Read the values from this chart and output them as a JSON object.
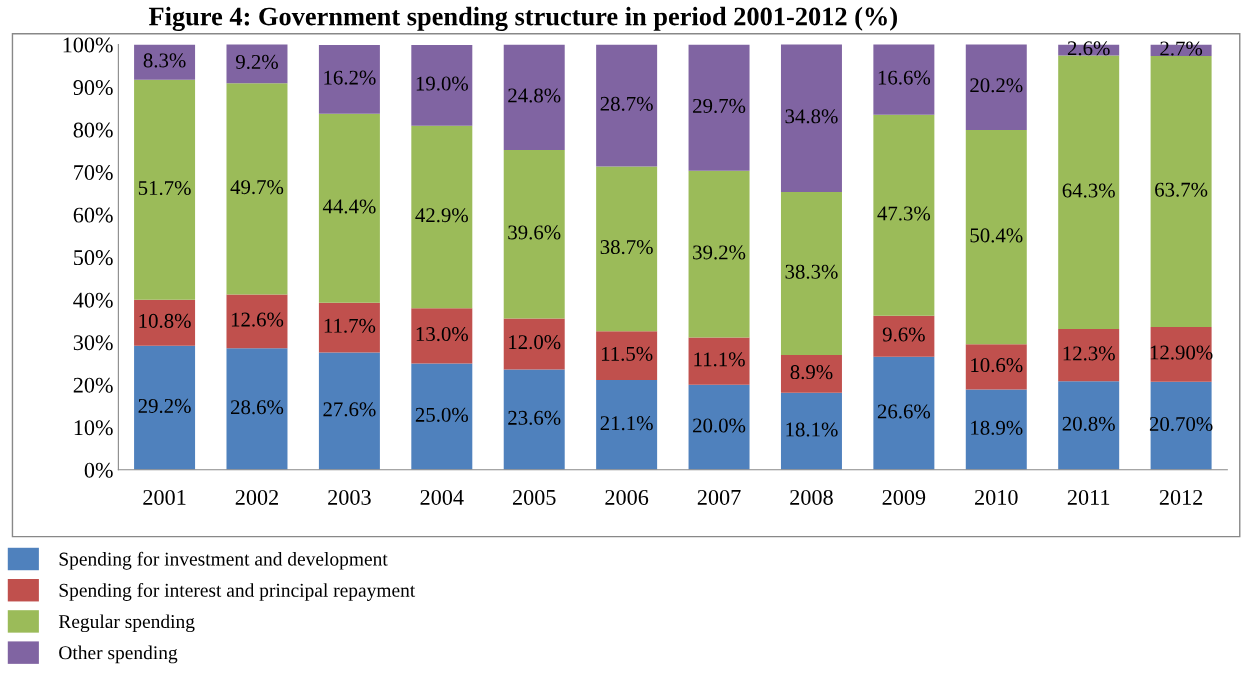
{
  "chart_data": {
    "type": "bar",
    "stacked": true,
    "title": "Figure 4: Government spending structure in period 2001-2012 (%)",
    "categories": [
      "2001",
      "2002",
      "2003",
      "2004",
      "2005",
      "2006",
      "2007",
      "2008",
      "2009",
      "2010",
      "2011",
      "2012"
    ],
    "series": [
      {
        "name": "Spending for investment and development",
        "color": "#4f81bd",
        "values": [
          29.2,
          28.6,
          27.6,
          25.0,
          23.6,
          21.1,
          20.0,
          18.1,
          26.6,
          18.9,
          20.8,
          20.7
        ],
        "value_labels": [
          "29.2%",
          "28.6%",
          "27.6%",
          "25.0%",
          "23.6%",
          "21.1%",
          "20.0%",
          "18.1%",
          "26.6%",
          "18.9%",
          "20.8%",
          "20.70%"
        ]
      },
      {
        "name": "Spending for interest and principal repayment",
        "color": "#c0504d",
        "values": [
          10.8,
          12.6,
          11.7,
          13.0,
          12.0,
          11.5,
          11.1,
          8.9,
          9.6,
          10.6,
          12.3,
          12.9
        ],
        "value_labels": [
          "10.8%",
          "12.6%",
          "11.7%",
          "13.0%",
          "12.0%",
          "11.5%",
          "11.1%",
          "8.9%",
          "9.6%",
          "10.6%",
          "12.3%",
          "12.90%"
        ]
      },
      {
        "name": "Regular spending",
        "color": "#9bbb59",
        "values": [
          51.7,
          49.7,
          44.4,
          42.9,
          39.6,
          38.7,
          39.2,
          38.3,
          47.3,
          50.4,
          64.3,
          63.7
        ],
        "value_labels": [
          "51.7%",
          "49.7%",
          "44.4%",
          "42.9%",
          "39.6%",
          "38.7%",
          "39.2%",
          "38.3%",
          "47.3%",
          "50.4%",
          "64.3%",
          "63.7%"
        ]
      },
      {
        "name": "Other spending",
        "color": "#8064a2",
        "values": [
          8.3,
          9.2,
          16.2,
          19.0,
          24.8,
          28.7,
          29.7,
          34.8,
          16.6,
          20.2,
          2.6,
          2.7
        ],
        "value_labels": [
          "8.3%",
          "9.2%",
          "16.2%",
          "19.0%",
          "24.8%",
          "28.7%",
          "29.7%",
          "34.8%",
          "16.6%",
          "20.2%",
          "2.6%",
          "2.7%"
        ]
      }
    ],
    "ylim": [
      0,
      100
    ],
    "yticks": [
      {
        "value": 0,
        "label": "0%"
      },
      {
        "value": 10,
        "label": "10%"
      },
      {
        "value": 20,
        "label": "20%"
      },
      {
        "value": 30,
        "label": "30%"
      },
      {
        "value": 40,
        "label": "40%"
      },
      {
        "value": 50,
        "label": "50%"
      },
      {
        "value": 60,
        "label": "60%"
      },
      {
        "value": 70,
        "label": "70%"
      },
      {
        "value": 80,
        "label": "80%"
      },
      {
        "value": 90,
        "label": "90%"
      },
      {
        "value": 100,
        "label": "100%"
      }
    ],
    "grid": false,
    "legend": "bottom left"
  }
}
